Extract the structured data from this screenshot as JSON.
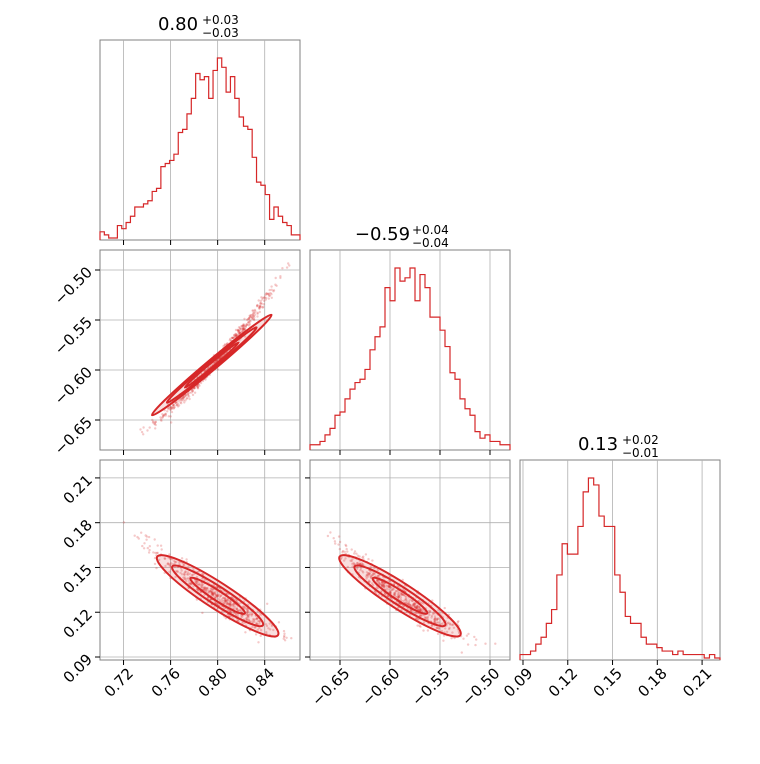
{
  "chart_data": {
    "type": "corner",
    "parameters": [
      {
        "ticks": [
          "0.72",
          "0.76",
          "0.80",
          "0.84"
        ],
        "tick_values": [
          0.72,
          0.76,
          0.8,
          0.84
        ],
        "range": [
          0.7,
          0.87
        ]
      },
      {
        "ticks": [
          "−0.65",
          "−0.60",
          "−0.55",
          "−0.50"
        ],
        "tick_values": [
          -0.65,
          -0.6,
          -0.55,
          -0.5
        ],
        "range": [
          -0.68,
          -0.48
        ]
      },
      {
        "ticks": [
          "0.09",
          "0.12",
          "0.15",
          "0.18",
          "0.21"
        ],
        "tick_values": [
          0.09,
          0.12,
          0.15,
          0.18,
          0.21
        ],
        "range": [
          0.088,
          0.222
        ]
      }
    ],
    "titles": [
      {
        "value": "0.80",
        "plus": "+0.03",
        "minus": "−0.03"
      },
      {
        "value": "−0.59",
        "plus": "+0.04",
        "minus": "−0.04"
      },
      {
        "value": "0.13",
        "plus": "+0.02",
        "minus": "−0.01"
      }
    ],
    "histograms": [
      {
        "counts": [
          2,
          1,
          0,
          0,
          4,
          3,
          5,
          7,
          10,
          10,
          11,
          12,
          15,
          16,
          23,
          24,
          25,
          27,
          34,
          35,
          40,
          45,
          53,
          51,
          52,
          45,
          54,
          58,
          55,
          47,
          52,
          45,
          39,
          36,
          35,
          26,
          18,
          17,
          14,
          6,
          10,
          7,
          5,
          4,
          1,
          1
        ]
      },
      {
        "counts": [
          1,
          1,
          2,
          4,
          6,
          10,
          11,
          15,
          18,
          20,
          21,
          24,
          30,
          34,
          37,
          49,
          45,
          55,
          51,
          52,
          55,
          45,
          53,
          49,
          40,
          40,
          36,
          31,
          23,
          21,
          15,
          12,
          10,
          5,
          3,
          4,
          2,
          2,
          1,
          1
        ]
      },
      {
        "counts": [
          1,
          1,
          2,
          4,
          6,
          10,
          14,
          24,
          33,
          30,
          30,
          38,
          48,
          52,
          50,
          41,
          38,
          38,
          24,
          19,
          12,
          10,
          10,
          6,
          4,
          4,
          3,
          2,
          2,
          1,
          2,
          1,
          1,
          1,
          1,
          0,
          1,
          0
        ]
      }
    ],
    "scatter_series": [
      {
        "name": "",
        "row": 1,
        "col": 0
      },
      {
        "name": "",
        "row": 2,
        "col": 0
      },
      {
        "name": "",
        "row": 2,
        "col": 1
      }
    ],
    "correlations": {
      "p1_vs_p0": "positive, tight",
      "p2_vs_p0": "negative",
      "p2_vs_p1": "negative"
    },
    "grid": true,
    "color": "#d62728"
  }
}
